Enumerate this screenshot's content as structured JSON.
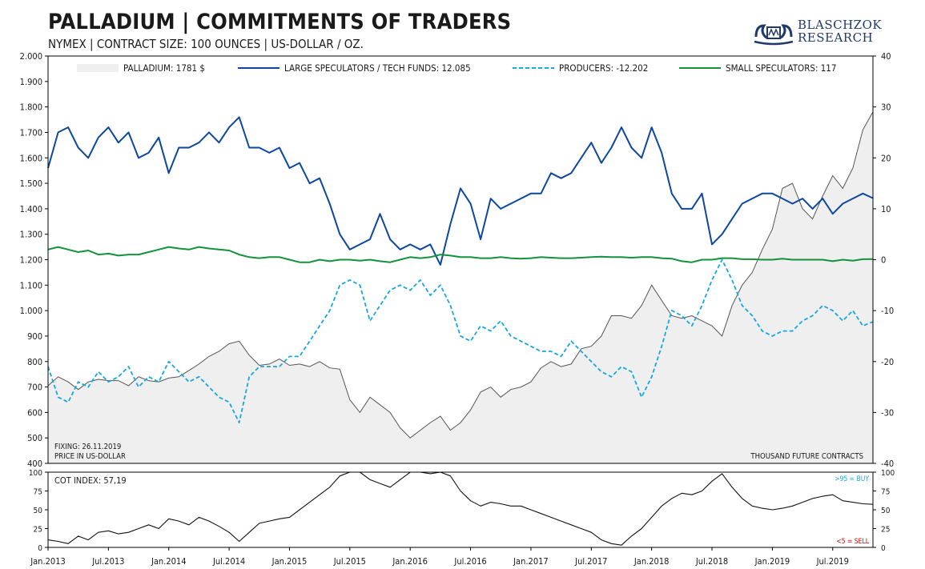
{
  "header": {
    "title": "PALLADIUM | COMMITMENTS OF TRADERS",
    "subtitle": "NYMEX | CONTRACT SIZE: 100 OUNCES | US-DOLLAR / OZ."
  },
  "logo": {
    "line1": "BLASCHZOK",
    "line2": "RESEARCH",
    "icon": "crown-wave-logo-icon"
  },
  "colors": {
    "price_fill": "#efefef",
    "price_line": "#555555",
    "large": "#0d47a1",
    "producers": "#16a6e2",
    "small": "#12923a",
    "cot": "#111111",
    "buy": "#16a6e2",
    "sell": "#cc0000",
    "frame": "#000000"
  },
  "chart_data": [
    {
      "type": "line",
      "title": "PALLADIUM | COMMITMENTS OF TRADERS",
      "x": [
        "2013-01",
        "2013-02",
        "2013-03",
        "2013-04",
        "2013-05",
        "2013-06",
        "2013-07",
        "2013-08",
        "2013-09",
        "2013-10",
        "2013-11",
        "2013-12",
        "2014-01",
        "2014-02",
        "2014-03",
        "2014-04",
        "2014-05",
        "2014-06",
        "2014-07",
        "2014-08",
        "2014-09",
        "2014-10",
        "2014-11",
        "2014-12",
        "2015-01",
        "2015-02",
        "2015-03",
        "2015-04",
        "2015-05",
        "2015-06",
        "2015-07",
        "2015-08",
        "2015-09",
        "2015-10",
        "2015-11",
        "2015-12",
        "2016-01",
        "2016-02",
        "2016-03",
        "2016-04",
        "2016-05",
        "2016-06",
        "2016-07",
        "2016-08",
        "2016-09",
        "2016-10",
        "2016-11",
        "2016-12",
        "2017-01",
        "2017-02",
        "2017-03",
        "2017-04",
        "2017-05",
        "2017-06",
        "2017-07",
        "2017-08",
        "2017-09",
        "2017-10",
        "2017-11",
        "2017-12",
        "2018-01",
        "2018-02",
        "2018-03",
        "2018-04",
        "2018-05",
        "2018-06",
        "2018-07",
        "2018-08",
        "2018-09",
        "2018-10",
        "2018-11",
        "2018-12",
        "2019-01",
        "2019-02",
        "2019-03",
        "2019-04",
        "2019-05",
        "2019-06",
        "2019-07",
        "2019-08",
        "2019-09",
        "2019-10",
        "2019-11"
      ],
      "left_axis": {
        "range": [
          400,
          2000
        ],
        "ticks": [
          "2.000",
          "1.900",
          "1.800",
          "1.700",
          "1.600",
          "1.500",
          "1.400",
          "1.300",
          "1.200",
          "1.100",
          "1.000",
          "900",
          "800",
          "700",
          "600",
          "500",
          "400"
        ],
        "label": "PRICE IN US-DOLLAR"
      },
      "right_axis": {
        "range": [
          -40,
          40
        ],
        "ticks": [
          "40",
          "30",
          "20",
          "10",
          "0",
          "-10",
          "-20",
          "-30",
          "-40"
        ],
        "label": "THOUSAND FUTURE CONTRACTS"
      },
      "x_ticks": [
        "Jan.2013",
        "Jul.2013",
        "Jan.2014",
        "Jul.2014",
        "Jan.2015",
        "Jul.2015",
        "Jan.2016",
        "Jul.2016",
        "Jan.2017",
        "Jul.2017",
        "Jan.2018",
        "Jul.2018",
        "Jan.2019",
        "Jul.2019"
      ],
      "grid": false,
      "legend_position": "top",
      "fixing_note": "FIXING: 26.11.2019",
      "series": [
        {
          "name": "PALLADIUM: 1781 $",
          "axis": "left",
          "style": "area",
          "values": [
            705,
            740,
            720,
            690,
            720,
            730,
            725,
            725,
            705,
            740,
            725,
            720,
            735,
            740,
            765,
            790,
            820,
            840,
            870,
            880,
            825,
            785,
            790,
            810,
            785,
            790,
            780,
            800,
            775,
            770,
            650,
            600,
            660,
            630,
            600,
            540,
            500,
            530,
            560,
            585,
            530,
            560,
            610,
            680,
            700,
            660,
            690,
            700,
            720,
            775,
            800,
            780,
            790,
            850,
            860,
            900,
            980,
            980,
            970,
            1020,
            1100,
            1040,
            980,
            970,
            980,
            960,
            940,
            900,
            1020,
            1100,
            1150,
            1240,
            1320,
            1480,
            1500,
            1400,
            1360,
            1450,
            1530,
            1480,
            1560,
            1710,
            1781
          ]
        },
        {
          "name": "LARGE SPECULATORS / TECH FUNDS: 12.085",
          "axis": "right",
          "style": "solid",
          "values": [
            18,
            25,
            26,
            22,
            20,
            24,
            26,
            23,
            25,
            20,
            21,
            24,
            17,
            22,
            22,
            23,
            25,
            23,
            26,
            28,
            22,
            22,
            21,
            22,
            18,
            19,
            15,
            16,
            11,
            5,
            2,
            3,
            4,
            9,
            4,
            2,
            3,
            2,
            3,
            -1,
            7,
            14,
            11,
            4,
            12,
            10,
            11,
            12,
            13,
            13,
            17,
            16,
            17,
            20,
            23,
            19,
            22,
            26,
            22,
            20,
            26,
            21,
            13,
            10,
            10,
            13,
            3,
            5,
            8,
            11,
            12,
            13,
            13,
            12,
            11,
            12,
            10,
            12,
            9,
            11,
            12,
            13,
            12.085
          ]
        },
        {
          "name": "PRODUCERS: -12.202",
          "axis": "right",
          "style": "dashed",
          "values": [
            -21,
            -27,
            -28,
            -24,
            -25,
            -22,
            -24,
            -23,
            -21,
            -25,
            -23,
            -24,
            -20,
            -22,
            -24,
            -23,
            -25,
            -27,
            -28,
            -32,
            -23,
            -21,
            -21,
            -21,
            -19,
            -19,
            -16,
            -13,
            -10,
            -5,
            -4,
            -5,
            -12,
            -9,
            -6,
            -5,
            -6,
            -4,
            -7,
            -5,
            -9,
            -15,
            -16,
            -13,
            -14,
            -12,
            -15,
            -16,
            -17,
            -18,
            -18,
            -19,
            -16,
            -18,
            -20,
            -22,
            -23,
            -21,
            -22,
            -27,
            -23,
            -17,
            -10,
            -11,
            -13,
            -9,
            -4,
            0,
            -4,
            -9,
            -11,
            -14,
            -15,
            -14,
            -14,
            -12,
            -11,
            -9,
            -10,
            -12,
            -10,
            -13,
            -12.202
          ]
        },
        {
          "name": "SMALL SPECULATORS: 117",
          "axis": "right",
          "style": "solid",
          "values": [
            2,
            2.5,
            2,
            1.5,
            1.8,
            1,
            1.2,
            0.8,
            1,
            1,
            1.5,
            2,
            2.5,
            2.2,
            2,
            2.5,
            2.2,
            2,
            1.8,
            1,
            0.5,
            0.3,
            0.5,
            0.5,
            0,
            -0.5,
            -0.5,
            0,
            -0.3,
            0,
            0,
            -0.2,
            0,
            -0.3,
            -0.5,
            0,
            0.5,
            0.3,
            0.5,
            1,
            0.8,
            0.5,
            0.5,
            0.3,
            0.3,
            0.5,
            0.3,
            0.2,
            0.3,
            0.5,
            0.4,
            0.3,
            0.3,
            0.4,
            0.5,
            0.6,
            0.5,
            0.5,
            0.4,
            0.5,
            0.5,
            0.3,
            0.2,
            -0.3,
            -0.5,
            0,
            0,
            0.3,
            0.3,
            0.1,
            0.1,
            0,
            0,
            0.2,
            0,
            0,
            0,
            0,
            -0.3,
            0,
            -0.2,
            0.1,
            0.117
          ]
        }
      ]
    },
    {
      "type": "line",
      "title": "COT INDEX: 57,19",
      "x_ticks": [
        "Jan.2013",
        "Jul.2013",
        "Jan.2014",
        "Jul.2014",
        "Jan.2015",
        "Jul.2015",
        "Jan.2016",
        "Jul.2016",
        "Jan.2017",
        "Jul.2017",
        "Jan.2018",
        "Jul.2018",
        "Jan.2019",
        "Jul.2019"
      ],
      "y_range": [
        0,
        100
      ],
      "y_ticks": [
        "100",
        "75",
        "50",
        "25",
        "0"
      ],
      "annotations": {
        "buy": ">95 = BUY",
        "sell": "<5 = SELL"
      },
      "series": [
        {
          "axis": "left",
          "style": "solid",
          "values": [
            10,
            8,
            5,
            15,
            10,
            20,
            22,
            18,
            20,
            25,
            30,
            25,
            38,
            35,
            30,
            40,
            35,
            28,
            20,
            8,
            20,
            32,
            35,
            38,
            40,
            50,
            60,
            70,
            80,
            95,
            100,
            100,
            90,
            85,
            80,
            90,
            100,
            100,
            98,
            100,
            95,
            75,
            62,
            55,
            60,
            58,
            55,
            55,
            50,
            45,
            40,
            35,
            30,
            25,
            20,
            10,
            5,
            3,
            15,
            25,
            40,
            55,
            65,
            72,
            70,
            75,
            88,
            98,
            80,
            65,
            55,
            52,
            50,
            52,
            55,
            60,
            65,
            68,
            70,
            62,
            60,
            58,
            57.19
          ]
        }
      ]
    }
  ]
}
